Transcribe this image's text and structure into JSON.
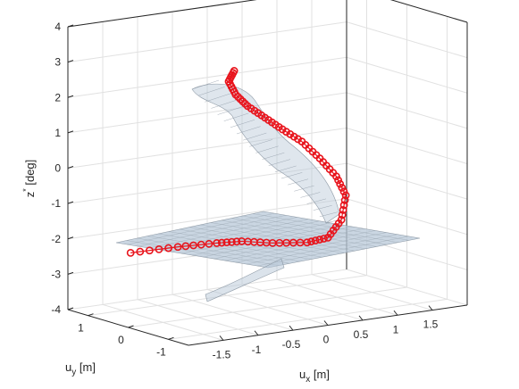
{
  "chart_data": {
    "type": "3d-scatter-surface",
    "title": "",
    "xlabel": "u",
    "xlabel_sub": "x",
    "xlabel_unit": " [m]",
    "ylabel": "u",
    "ylabel_sub": "y",
    "ylabel_unit": " [m]",
    "zlabel": "z",
    "zlabel_sup": "*",
    "zlabel_unit": " [deg]",
    "xlim": [
      -2,
      2
    ],
    "ylim": [
      -1.5,
      1.5
    ],
    "zlim": [
      -4,
      4
    ],
    "x_ticks": [
      "-1.5",
      "-1",
      "-0.5",
      "0",
      "0.5",
      "1",
      "1.5"
    ],
    "y_ticks": [
      "1",
      "0",
      "-1"
    ],
    "z_ticks": [
      "4",
      "3",
      "2",
      "1",
      "0",
      "-1",
      "-2",
      "-3",
      "-4"
    ],
    "grid": true,
    "colors": {
      "surface": "#8e9aa6",
      "surface_fill": "#b8c8d8",
      "points": "#e8141c",
      "grid": "#e1e1e1",
      "axis": "#262626"
    },
    "red_path_xyz": [
      [
        -1.85,
        0.2,
        -2.0
      ],
      [
        -1.2,
        0.15,
        -2.0
      ],
      [
        -0.7,
        0.05,
        -2.0
      ],
      [
        -0.4,
        -0.05,
        -2.0
      ],
      [
        -0.1,
        -0.3,
        -2.05
      ],
      [
        0.25,
        -0.55,
        -2.05
      ],
      [
        0.55,
        -0.55,
        -2.0
      ],
      [
        0.8,
        -0.45,
        -1.6
      ],
      [
        0.95,
        -0.3,
        -1.0
      ],
      [
        0.9,
        -0.15,
        -0.5
      ],
      [
        0.75,
        0.0,
        0.0
      ],
      [
        0.55,
        0.1,
        0.5
      ],
      [
        0.3,
        0.15,
        0.9
      ],
      [
        0.05,
        0.15,
        1.3
      ],
      [
        -0.2,
        0.15,
        1.7
      ],
      [
        -0.4,
        0.1,
        2.1
      ],
      [
        -0.5,
        0.1,
        2.5
      ],
      [
        -0.45,
        0.05,
        2.8
      ]
    ]
  }
}
